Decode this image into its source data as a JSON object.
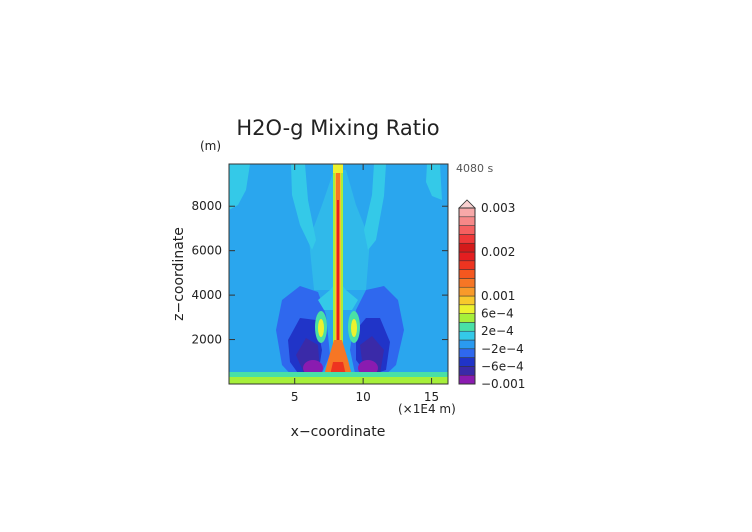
{
  "chart_data": {
    "type": "heatmap",
    "title": "H2O-g Mixing Ratio",
    "xlabel": "x−coordinate",
    "ylabel": "z−coordinate",
    "x_unit": "(×1E4 m)",
    "y_unit": "(m)",
    "time_label": "4080 s",
    "x_range": [
      0.2,
      16.2
    ],
    "y_range": [
      0,
      9900
    ],
    "x_ticks": [
      5,
      10,
      15
    ],
    "y_ticks": [
      2000,
      4000,
      6000,
      8000
    ],
    "grid": false,
    "colorbar": {
      "position": "right",
      "extend": "max",
      "levels": [
        {
          "value": -0.001,
          "color": "#8a1bb0"
        },
        {
          "value": -0.0008,
          "color": "#3a2aa8"
        },
        {
          "value": -0.0006,
          "color": "#2034c8"
        },
        {
          "value": -0.0004,
          "color": "#2f68ee"
        },
        {
          "value": -0.0002,
          "color": "#2a9af0"
        },
        {
          "value": 0.0,
          "color": "#34c9e8"
        },
        {
          "value": 0.0002,
          "color": "#49e0a6"
        },
        {
          "value": 0.0004,
          "color": "#a6ef3a"
        },
        {
          "value": 0.0006,
          "color": "#ecf22e"
        },
        {
          "value": 0.0008,
          "color": "#f8c92c"
        },
        {
          "value": 0.001,
          "color": "#f89a2a"
        },
        {
          "value": 0.0012,
          "color": "#f67625"
        },
        {
          "value": 0.0014,
          "color": "#f4571f"
        },
        {
          "value": 0.0016,
          "color": "#ee3420"
        },
        {
          "value": 0.0018,
          "color": "#e41e20"
        },
        {
          "value": 0.002,
          "color": "#d41a1a"
        },
        {
          "value": 0.0022,
          "color": "#ef3838"
        },
        {
          "value": 0.0024,
          "color": "#f56060"
        },
        {
          "value": 0.0026,
          "color": "#f68888"
        },
        {
          "value": 0.0028,
          "color": "#f7a8a8"
        }
      ],
      "tick_labels": [
        {
          "value": -0.001,
          "label": "−0.001"
        },
        {
          "value": -0.0006,
          "label": "−6e−4"
        },
        {
          "value": -0.0002,
          "label": "−2e−4"
        },
        {
          "value": 0.0002,
          "label": "2e−4"
        },
        {
          "value": 0.0006,
          "label": "6e−4"
        },
        {
          "value": 0.001,
          "label": "0.001"
        },
        {
          "value": 0.002,
          "label": "0.002"
        },
        {
          "value": 0.003,
          "label": "0.003"
        }
      ]
    }
  }
}
